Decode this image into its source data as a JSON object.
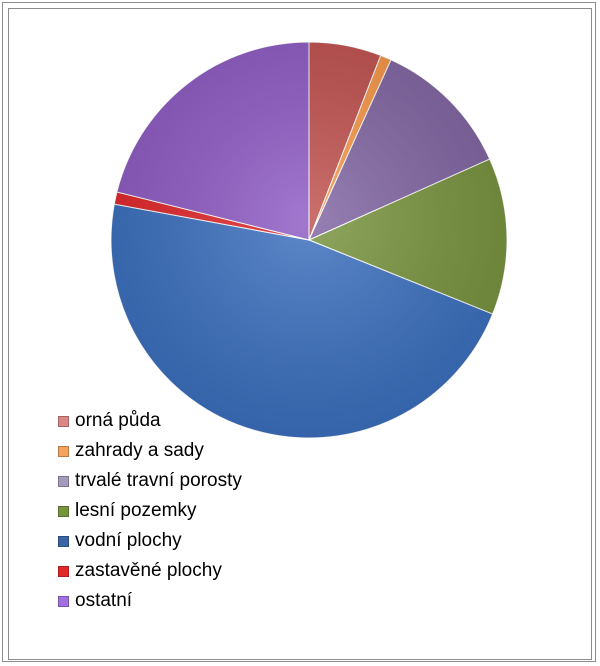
{
  "chart_data": {
    "type": "pie",
    "legend_position": "left-bottom",
    "categories": [
      "orná půda",
      "zahrady a sady",
      "trvalé travní porosty",
      "lesní pozemky",
      "vodní plochy",
      "zastavěné plochy",
      "ostatní"
    ],
    "values": [
      5.9,
      0.9,
      11.5,
      12.8,
      46.8,
      1.0,
      21.1
    ],
    "colors": [
      "#c0504d",
      "#f79646",
      "#8064a2",
      "#77933c",
      "#3a6fbf",
      "#e2262a",
      "#8e5ac4"
    ],
    "legend_colors": [
      "#d98884",
      "#f4a55d",
      "#a79bbd",
      "#77933c",
      "#3a65a4",
      "#e2262a",
      "#a070e0"
    ]
  }
}
